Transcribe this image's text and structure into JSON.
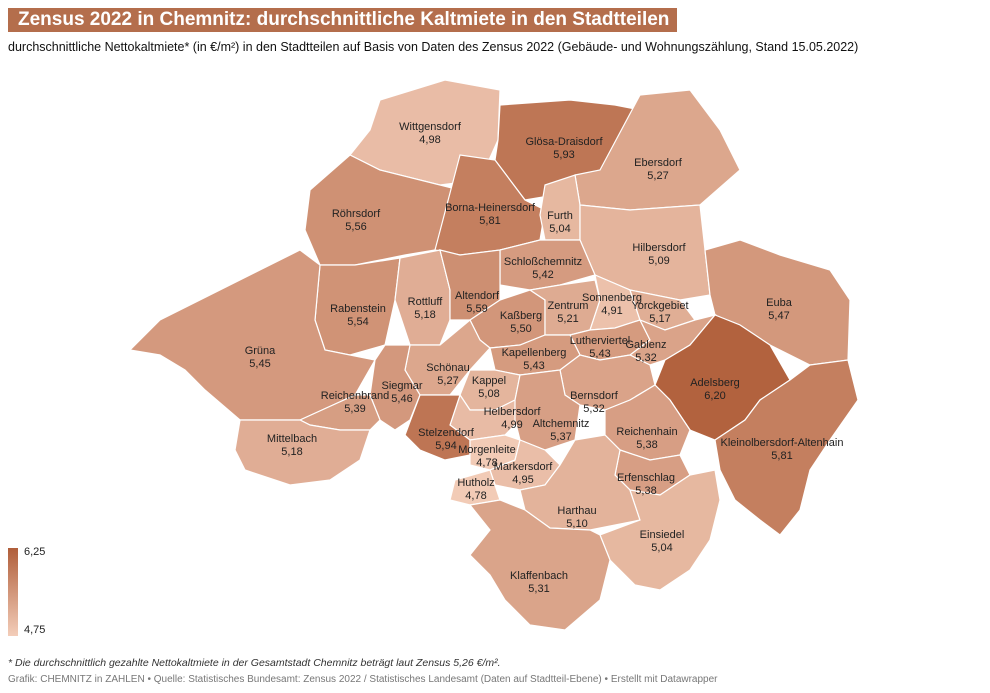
{
  "title": "Zensus 2022 in Chemnitz: durchschnittliche Kaltmiete in den Stadtteilen",
  "subtitle": "durchschnittliche Nettokaltmiete* (in €/m²) in den Stadtteilen auf Basis von Daten des Zensus 2022 (Gebäude- und Wohnungszählung, Stand 15.05.2022)",
  "legend": {
    "max": "6,25",
    "min": "4,75",
    "color_max": "#b05e3a",
    "color_min": "#f3cdb9"
  },
  "footnote": "* Die durchschnittlich gezahlte Nettokaltmiete in der Gesamtstadt Chemnitz beträgt laut Zensus 5,26 €/m².",
  "credit": "Grafik: CHEMNITZ in ZAHLEN • Quelle: Statistisches Bundesamt: Zensus 2022 / Statistisches Landesamt (Daten auf Stadtteil-Ebene) • Erstellt mit Datawrapper",
  "districts": [
    {
      "name": "Wittgensdorf",
      "value": "4,98"
    },
    {
      "name": "Glösa-Draisdorf",
      "value": "5,93"
    },
    {
      "name": "Ebersdorf",
      "value": "5,27"
    },
    {
      "name": "Röhrsdorf",
      "value": "5,56"
    },
    {
      "name": "Borna-Heinersdorf",
      "value": "5,81"
    },
    {
      "name": "Furth",
      "value": "5,04"
    },
    {
      "name": "Hilbersdorf",
      "value": "5,09"
    },
    {
      "name": "Schloßchemnitz",
      "value": "5,42"
    },
    {
      "name": "Rabenstein",
      "value": "5,54"
    },
    {
      "name": "Rottluff",
      "value": "5,18"
    },
    {
      "name": "Altendorf",
      "value": "5,59"
    },
    {
      "name": "Kaßberg",
      "value": "5,50"
    },
    {
      "name": "Zentrum",
      "value": "5,21"
    },
    {
      "name": "Sonnenberg",
      "value": "4,91"
    },
    {
      "name": "Yorckgebiet",
      "value": "5,17"
    },
    {
      "name": "Euba",
      "value": "5,47"
    },
    {
      "name": "Grüna",
      "value": "5,45"
    },
    {
      "name": "Lutherviertel",
      "value": "5,43"
    },
    {
      "name": "Gablenz",
      "value": "5,32"
    },
    {
      "name": "Kapellenberg",
      "value": "5,43"
    },
    {
      "name": "Schönau",
      "value": "5,27"
    },
    {
      "name": "Adelsberg",
      "value": "6,20"
    },
    {
      "name": "Kappel",
      "value": "5,08"
    },
    {
      "name": "Siegmar",
      "value": "5,46"
    },
    {
      "name": "Reichenbrand",
      "value": "5,39"
    },
    {
      "name": "Bernsdorf",
      "value": "5,32"
    },
    {
      "name": "Helbersdorf",
      "value": "4,99"
    },
    {
      "name": "Altchemnitz",
      "value": "5,37"
    },
    {
      "name": "Reichenhain",
      "value": "5,38"
    },
    {
      "name": "Mittelbach",
      "value": "5,18"
    },
    {
      "name": "Stelzendorf",
      "value": "5,94"
    },
    {
      "name": "Kleinolbersdorf-Altenhain",
      "value": "5,81"
    },
    {
      "name": "Morgenleite",
      "value": "4,78"
    },
    {
      "name": "Markersdorf",
      "value": "4,95"
    },
    {
      "name": "Erfenschlag",
      "value": "5,38"
    },
    {
      "name": "Hutholz",
      "value": "4,78"
    },
    {
      "name": "Harthau",
      "value": "5,10"
    },
    {
      "name": "Einsiedel",
      "value": "5,04"
    },
    {
      "name": "Klaffenbach",
      "value": "5,31"
    }
  ]
}
